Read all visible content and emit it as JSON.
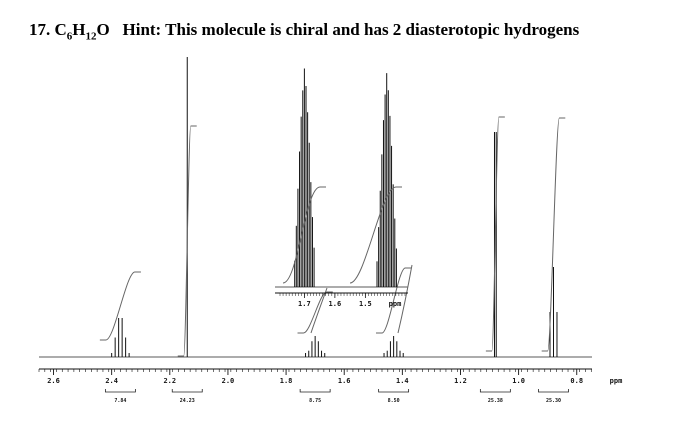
{
  "question": {
    "number": "17.",
    "formula": "C6H12O",
    "hint": "Hint: This molecule is chiral and has 2 diasterotopic hydrogens"
  },
  "chart_data": {
    "type": "line",
    "title": "",
    "xlabel": "ppm",
    "ylabel": "",
    "x_reversed": true,
    "xlim": [
      2.65,
      0.72
    ],
    "x_ticks": [
      "2.6",
      "2.4",
      "2.2",
      "2.0",
      "1.8",
      "1.6",
      "1.4",
      "1.2",
      "1.0",
      "0.8"
    ],
    "x_tick_values": [
      2.6,
      2.4,
      2.2,
      2.0,
      1.8,
      1.6,
      1.4,
      1.2,
      1.0,
      0.8
    ],
    "peaks": [
      {
        "shift": 2.37,
        "multiplicity": "sextet",
        "height": 0.13,
        "integral": "7.84"
      },
      {
        "shift": 2.14,
        "multiplicity": "singlet",
        "height": 1.0,
        "integral": "24.23"
      },
      {
        "shift": 1.7,
        "multiplicity": "multiplet",
        "height": 0.07,
        "integral": "8.75"
      },
      {
        "shift": 1.43,
        "multiplicity": "multiplet",
        "height": 0.07,
        "integral": "8.50"
      },
      {
        "shift": 1.08,
        "multiplicity": "doublet",
        "height": 0.75,
        "integral": "25.38"
      },
      {
        "shift": 0.88,
        "multiplicity": "triplet",
        "height": 0.3,
        "integral": "25.30"
      }
    ],
    "inset": {
      "xlim": [
        1.78,
        1.37
      ],
      "x_ticks": [
        "1.7",
        "1.6",
        "1.5"
      ],
      "x_tick_values": [
        1.7,
        1.6,
        1.5
      ],
      "xlabel": "ppm",
      "multiplets": [
        {
          "center": 1.7,
          "height": 0.95
        },
        {
          "center": 1.43,
          "height": 0.93
        }
      ]
    }
  }
}
